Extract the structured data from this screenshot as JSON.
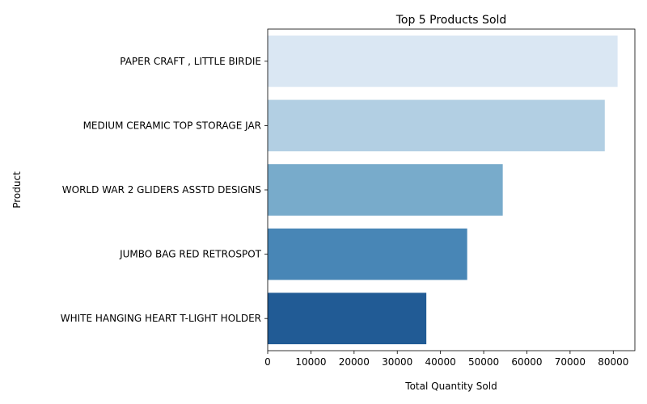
{
  "chart_data": {
    "type": "bar",
    "orientation": "horizontal",
    "title": "Top 5 Products Sold",
    "xlabel": "Total Quantity Sold",
    "ylabel": "Product",
    "categories": [
      "PAPER CRAFT , LITTLE BIRDIE",
      "MEDIUM CERAMIC TOP STORAGE JAR",
      "WORLD WAR 2 GLIDERS ASSTD DESIGNS",
      "JUMBO BAG RED RETROSPOT",
      "WHITE HANGING HEART T-LIGHT HOLDER"
    ],
    "values": [
      80995,
      78033,
      54415,
      46181,
      36725
    ],
    "colors": [
      "#dae7f3",
      "#b2cfe3",
      "#78abcb",
      "#4886b6",
      "#215b95"
    ],
    "xlim": [
      0,
      85000
    ],
    "xticks": [
      0,
      10000,
      20000,
      30000,
      40000,
      50000,
      60000,
      70000,
      80000
    ],
    "xtick_labels": [
      "0",
      "10000",
      "20000",
      "30000",
      "40000",
      "50000",
      "60000",
      "70000",
      "80000"
    ],
    "grid": false,
    "legend": "none"
  }
}
